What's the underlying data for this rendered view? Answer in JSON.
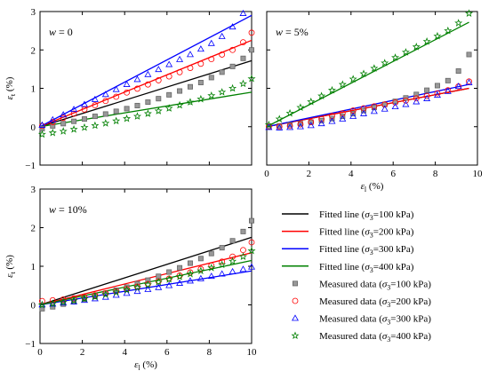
{
  "chart_data": [
    {
      "type": "scatter",
      "panel_label_var": "w",
      "panel_label_val": " = 0",
      "xlabel_main": "ε",
      "xlabel_sub": "l",
      "xlabel_unit": " (%)",
      "ylabel_main": "ε",
      "ylabel_sub": "t",
      "ylabel_unit": " (%)",
      "xlim": [
        0,
        10
      ],
      "ylim": [
        -1,
        3
      ],
      "x_ticks": [
        0,
        2,
        4,
        6,
        8,
        10
      ],
      "y_ticks": [
        -1,
        0,
        1,
        2,
        3
      ],
      "x_tick_labels_shown": false,
      "y_tick_labels_shown": true,
      "fitted_lines": [
        {
          "series": "s100",
          "x": [
            0,
            10
          ],
          "y": [
            0,
            1.72
          ]
        },
        {
          "series": "s200",
          "x": [
            0,
            10
          ],
          "y": [
            0,
            2.25
          ]
        },
        {
          "series": "s300",
          "x": [
            0,
            10
          ],
          "y": [
            0,
            2.9
          ]
        },
        {
          "series": "s400",
          "x": [
            0,
            10
          ],
          "y": [
            0,
            0.9
          ]
        }
      ],
      "measured": [
        {
          "series": "s100",
          "x": [
            0.1,
            0.6,
            1.1,
            1.6,
            2.1,
            2.6,
            3.1,
            3.6,
            4.1,
            4.6,
            5.1,
            5.6,
            6.1,
            6.6,
            7.1,
            7.6,
            8.1,
            8.6,
            9.1,
            9.6,
            10.0
          ],
          "y": [
            -0.05,
            0.02,
            0.08,
            0.14,
            0.2,
            0.27,
            0.33,
            0.4,
            0.47,
            0.55,
            0.64,
            0.73,
            0.83,
            0.93,
            1.04,
            1.15,
            1.28,
            1.42,
            1.57,
            1.78,
            2.0
          ]
        },
        {
          "series": "s200",
          "x": [
            0.1,
            0.6,
            1.1,
            1.6,
            2.1,
            2.6,
            3.1,
            3.6,
            4.1,
            4.6,
            5.1,
            5.6,
            6.1,
            6.6,
            7.1,
            7.6,
            8.1,
            8.6,
            9.1,
            9.6,
            10.0
          ],
          "y": [
            0.02,
            0.12,
            0.23,
            0.34,
            0.45,
            0.56,
            0.67,
            0.78,
            0.89,
            0.99,
            1.1,
            1.21,
            1.31,
            1.42,
            1.53,
            1.64,
            1.76,
            1.88,
            2.0,
            2.2,
            2.45
          ]
        },
        {
          "series": "s300",
          "x": [
            0.1,
            0.6,
            1.1,
            1.6,
            2.1,
            2.6,
            3.1,
            3.6,
            4.1,
            4.6,
            5.1,
            5.6,
            6.1,
            6.6,
            7.1,
            7.6,
            8.1,
            8.6,
            9.1,
            9.6
          ],
          "y": [
            0.04,
            0.18,
            0.31,
            0.45,
            0.58,
            0.71,
            0.84,
            0.97,
            1.1,
            1.23,
            1.36,
            1.49,
            1.62,
            1.75,
            1.88,
            2.02,
            2.17,
            2.35,
            2.6,
            2.95
          ]
        },
        {
          "series": "s400",
          "x": [
            0.1,
            0.6,
            1.1,
            1.6,
            2.1,
            2.6,
            3.1,
            3.6,
            4.1,
            4.6,
            5.1,
            5.6,
            6.1,
            6.6,
            7.1,
            7.6,
            8.1,
            8.6,
            9.1,
            9.6,
            10.0
          ],
          "y": [
            -0.2,
            -0.16,
            -0.12,
            -0.07,
            -0.02,
            0.03,
            0.09,
            0.15,
            0.21,
            0.27,
            0.34,
            0.41,
            0.48,
            0.56,
            0.64,
            0.72,
            0.81,
            0.9,
            1.0,
            1.12,
            1.25
          ]
        }
      ]
    },
    {
      "type": "scatter",
      "panel_label_var": "w",
      "panel_label_val": " = 5%",
      "xlabel_main": "ε",
      "xlabel_sub": "l",
      "xlabel_unit": " (%)",
      "ylabel_main": "",
      "ylabel_sub": "",
      "ylabel_unit": "",
      "xlim": [
        0,
        10
      ],
      "ylim": [
        -1,
        3
      ],
      "x_ticks": [
        0,
        2,
        4,
        6,
        8,
        10
      ],
      "y_ticks": [
        -1,
        0,
        1,
        2,
        3
      ],
      "x_tick_labels_shown": true,
      "y_tick_labels_shown": false,
      "fitted_lines": [
        {
          "series": "s100",
          "x": [
            0,
            9.6
          ],
          "y": [
            0,
            1.0
          ]
        },
        {
          "series": "s200",
          "x": [
            0,
            9.6
          ],
          "y": [
            0,
            1.0
          ]
        },
        {
          "series": "s300",
          "x": [
            0,
            9.6
          ],
          "y": [
            0,
            1.1
          ]
        },
        {
          "series": "s400",
          "x": [
            0,
            9.6
          ],
          "y": [
            0,
            2.72
          ]
        }
      ],
      "measured": [
        {
          "series": "s100",
          "x": [
            0.1,
            0.6,
            1.1,
            1.6,
            2.1,
            2.6,
            3.1,
            3.6,
            4.1,
            4.6,
            5.1,
            5.6,
            6.1,
            6.6,
            7.1,
            7.6,
            8.1,
            8.6,
            9.1,
            9.6
          ],
          "y": [
            0.0,
            0.02,
            0.05,
            0.08,
            0.12,
            0.16,
            0.21,
            0.27,
            0.34,
            0.42,
            0.5,
            0.58,
            0.66,
            0.75,
            0.84,
            0.95,
            1.07,
            1.2,
            1.45,
            1.88
          ]
        },
        {
          "series": "s200",
          "x": [
            0.1,
            0.6,
            1.1,
            1.6,
            2.1,
            2.6,
            3.1,
            3.6,
            4.1,
            4.6,
            5.1,
            5.6,
            6.1,
            6.6,
            7.1,
            7.6,
            8.1,
            8.6,
            9.1,
            9.6
          ],
          "y": [
            0.0,
            0.0,
            0.02,
            0.06,
            0.12,
            0.2,
            0.28,
            0.35,
            0.42,
            0.48,
            0.53,
            0.58,
            0.63,
            0.68,
            0.74,
            0.8,
            0.87,
            0.95,
            1.05,
            1.18
          ]
        },
        {
          "series": "s300",
          "x": [
            0.1,
            0.6,
            1.1,
            1.6,
            2.1,
            2.6,
            3.1,
            3.6,
            4.1,
            4.6,
            5.1,
            5.6,
            6.1,
            6.6,
            7.1,
            7.6,
            8.1,
            8.6,
            9.1,
            9.6
          ],
          "y": [
            -0.02,
            -0.03,
            -0.02,
            0.0,
            0.03,
            0.08,
            0.14,
            0.2,
            0.27,
            0.34,
            0.4,
            0.46,
            0.52,
            0.58,
            0.65,
            0.73,
            0.82,
            0.92,
            1.05,
            1.15
          ]
        },
        {
          "series": "s400",
          "x": [
            0.1,
            0.6,
            1.1,
            1.6,
            2.1,
            2.6,
            3.1,
            3.6,
            4.1,
            4.6,
            5.1,
            5.6,
            6.1,
            6.6,
            7.1,
            7.6,
            8.1,
            8.6,
            9.1,
            9.6
          ],
          "y": [
            0.05,
            0.2,
            0.35,
            0.5,
            0.65,
            0.8,
            0.95,
            1.1,
            1.24,
            1.38,
            1.52,
            1.66,
            1.8,
            1.94,
            2.08,
            2.22,
            2.36,
            2.5,
            2.7,
            2.95
          ]
        }
      ]
    },
    {
      "type": "scatter",
      "panel_label_var": "w",
      "panel_label_val": " = 10%",
      "xlabel_main": "ε",
      "xlabel_sub": "l",
      "xlabel_unit": " (%)",
      "ylabel_main": "ε",
      "ylabel_sub": "t",
      "ylabel_unit": " (%)",
      "xlim": [
        0,
        10
      ],
      "ylim": [
        -1,
        3
      ],
      "x_ticks": [
        0,
        2,
        4,
        6,
        8,
        10
      ],
      "y_ticks": [
        -1,
        0,
        1,
        2,
        3
      ],
      "x_tick_labels_shown": true,
      "y_tick_labels_shown": true,
      "fitted_lines": [
        {
          "series": "s100",
          "x": [
            0,
            10
          ],
          "y": [
            0,
            1.75
          ]
        },
        {
          "series": "s200",
          "x": [
            0,
            10
          ],
          "y": [
            0,
            1.35
          ]
        },
        {
          "series": "s300",
          "x": [
            0,
            10
          ],
          "y": [
            0,
            0.88
          ]
        },
        {
          "series": "s400",
          "x": [
            0,
            10
          ],
          "y": [
            0,
            1.15
          ]
        }
      ],
      "measured": [
        {
          "series": "s100",
          "x": [
            0.1,
            0.6,
            1.1,
            1.6,
            2.1,
            2.6,
            3.1,
            3.6,
            4.1,
            4.6,
            5.1,
            5.6,
            6.1,
            6.6,
            7.1,
            7.6,
            8.1,
            8.6,
            9.1,
            9.6,
            10.0
          ],
          "y": [
            -0.1,
            -0.05,
            0.02,
            0.08,
            0.15,
            0.22,
            0.3,
            0.38,
            0.46,
            0.55,
            0.64,
            0.74,
            0.85,
            0.96,
            1.08,
            1.2,
            1.33,
            1.48,
            1.66,
            1.9,
            2.18
          ]
        },
        {
          "series": "s200",
          "x": [
            0.1,
            0.6,
            1.1,
            1.6,
            2.1,
            2.6,
            3.1,
            3.6,
            4.1,
            4.6,
            5.1,
            5.6,
            6.1,
            6.6,
            7.1,
            7.6,
            8.1,
            8.6,
            9.1,
            9.6,
            10.0
          ],
          "y": [
            0.1,
            0.12,
            0.14,
            0.17,
            0.2,
            0.25,
            0.3,
            0.35,
            0.41,
            0.47,
            0.54,
            0.61,
            0.68,
            0.76,
            0.84,
            0.93,
            1.02,
            1.12,
            1.25,
            1.42,
            1.62
          ]
        },
        {
          "series": "s300",
          "x": [
            0.1,
            0.6,
            1.1,
            1.6,
            2.1,
            2.6,
            3.1,
            3.6,
            4.1,
            4.6,
            5.1,
            5.6,
            6.1,
            6.6,
            7.1,
            7.6,
            8.1,
            8.6,
            9.1,
            9.6,
            10.0
          ],
          "y": [
            0.0,
            0.02,
            0.05,
            0.08,
            0.12,
            0.16,
            0.2,
            0.25,
            0.3,
            0.35,
            0.4,
            0.45,
            0.5,
            0.56,
            0.62,
            0.68,
            0.74,
            0.8,
            0.86,
            0.92,
            0.98
          ]
        },
        {
          "series": "s400",
          "x": [
            0.1,
            0.6,
            1.1,
            1.6,
            2.1,
            2.6,
            3.1,
            3.6,
            4.1,
            4.6,
            5.1,
            5.6,
            6.1,
            6.6,
            7.1,
            7.6,
            8.1,
            8.6,
            9.1,
            9.6,
            10.0
          ],
          "y": [
            0.0,
            0.03,
            0.07,
            0.11,
            0.16,
            0.21,
            0.27,
            0.33,
            0.39,
            0.45,
            0.52,
            0.59,
            0.66,
            0.73,
            0.8,
            0.88,
            0.96,
            1.04,
            1.13,
            1.25,
            1.4
          ]
        }
      ]
    }
  ],
  "series_styles": {
    "s100": {
      "color": "#000000",
      "marker": "square",
      "marker_fill": "#999999",
      "marker_stroke": "#666666"
    },
    "s200": {
      "color": "#ff0000",
      "marker": "circle",
      "marker_fill": "none",
      "marker_stroke": "#ff0000"
    },
    "s300": {
      "color": "#0000ff",
      "marker": "triangle",
      "marker_fill": "none",
      "marker_stroke": "#0000ff"
    },
    "s400": {
      "color": "#008000",
      "marker": "star",
      "marker_fill": "none",
      "marker_stroke": "#008000"
    }
  },
  "legend": {
    "placement": "bottom-right",
    "entries": [
      {
        "kind": "line",
        "series": "s100",
        "prefix": "Fitted line (",
        "sym": "σ",
        "sub": "3",
        "suffix": "=100 kPa)"
      },
      {
        "kind": "line",
        "series": "s200",
        "prefix": "Fitted line (",
        "sym": "σ",
        "sub": "3",
        "suffix": "=200 kPa)"
      },
      {
        "kind": "line",
        "series": "s300",
        "prefix": "Fitted line (",
        "sym": "σ",
        "sub": "3",
        "suffix": "=300 kPa)"
      },
      {
        "kind": "line",
        "series": "s400",
        "prefix": "Fitted line (",
        "sym": "σ",
        "sub": "3",
        "suffix": "=400 kPa)"
      },
      {
        "kind": "marker",
        "series": "s100",
        "prefix": "Measured data (",
        "sym": "σ",
        "sub": "3",
        "suffix": "=100 kPa)"
      },
      {
        "kind": "marker",
        "series": "s200",
        "prefix": "Measured data (",
        "sym": "σ",
        "sub": "3",
        "suffix": "=200 kPa)"
      },
      {
        "kind": "marker",
        "series": "s300",
        "prefix": "Measured data (",
        "sym": "σ",
        "sub": "3",
        "suffix": "=300 kPa)"
      },
      {
        "kind": "marker",
        "series": "s400",
        "prefix": "Measured data (",
        "sym": "σ",
        "sub": "3",
        "suffix": "=400 kPa)"
      }
    ]
  }
}
